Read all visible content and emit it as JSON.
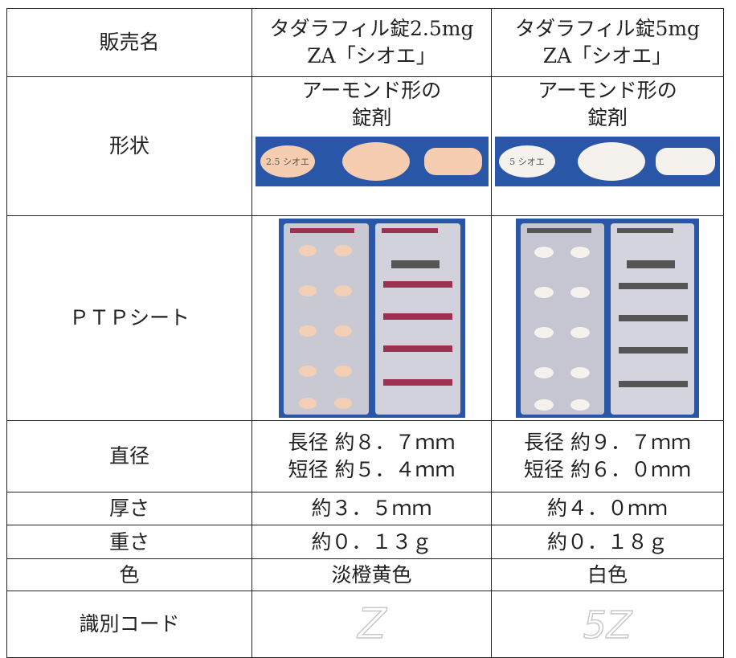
{
  "table": {
    "rows": [
      {
        "label": "販売名",
        "cells": [
          [
            "タダラフィル錠2.5mg",
            "ZA「シオエ」"
          ],
          [
            "タダラフィル錠5mg",
            "ZA「シオエ」"
          ]
        ]
      },
      {
        "label": "形状",
        "cells": [
          [
            "アーモンド形の",
            "錠剤"
          ],
          [
            "アーモンド形の",
            "錠剤"
          ]
        ],
        "imprints": [
          "2.5 シオエ",
          "5 シオエ"
        ]
      },
      {
        "label": "ＰＴＰシート"
      },
      {
        "label": "直径",
        "cells": [
          [
            "長径 約８．７ｍｍ",
            "短径 約５．４ｍｍ"
          ],
          [
            "長径 約９．７ｍｍ",
            "短径 約６．０ｍｍ"
          ]
        ]
      },
      {
        "label": "厚さ",
        "cells": [
          [
            "約３．５ｍｍ"
          ],
          [
            "約４．０ｍｍ"
          ]
        ]
      },
      {
        "label": "重さ",
        "cells": [
          [
            "約０．１３ｇ"
          ],
          [
            "約０．１８ｇ"
          ]
        ]
      },
      {
        "label": "色",
        "cells": [
          [
            "淡橙黄色"
          ],
          [
            "白色"
          ]
        ]
      },
      {
        "label": "識別コード",
        "codes": [
          "Z",
          "5Z"
        ]
      }
    ]
  }
}
